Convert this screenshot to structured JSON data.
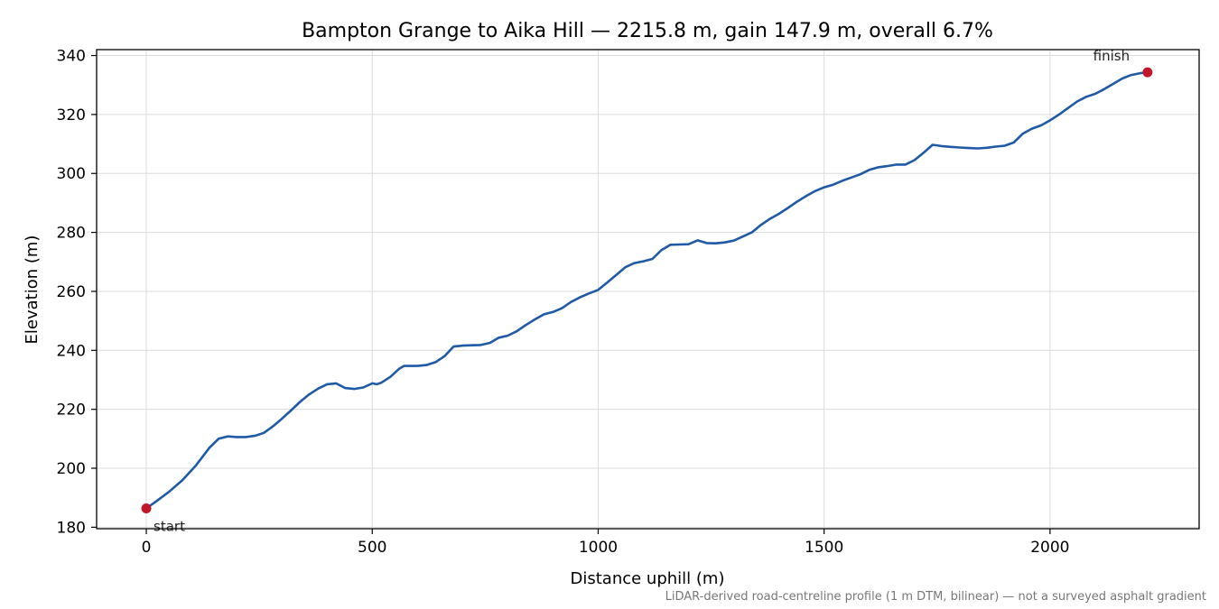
{
  "colors": {
    "line": "#1f5aa6",
    "marker": "#c0182a",
    "grid": "#dcdcdc",
    "note": "#777777"
  },
  "chart_data": {
    "type": "line",
    "title": "Bampton Grange to Aika Hill — 2215.8 m, gain 147.9 m, overall 6.7%",
    "xlabel": "Distance uphill (m)",
    "ylabel": "Elevation (m)",
    "xlim": [
      -110,
      2330
    ],
    "ylim": [
      179.5,
      342
    ],
    "grid": true,
    "xticks": [
      0,
      500,
      1000,
      1500,
      2000
    ],
    "yticks": [
      180,
      200,
      220,
      240,
      260,
      280,
      300,
      320,
      340
    ],
    "xtick_labels": [
      "0",
      "500",
      "1000",
      "1500",
      "2000"
    ],
    "ytick_labels": [
      "180",
      "200",
      "220",
      "240",
      "260",
      "280",
      "300",
      "320",
      "340"
    ],
    "series": [
      {
        "x": [
          0,
          20,
          50,
          80,
          110,
          140,
          160,
          180,
          200,
          220,
          240,
          260,
          280,
          300,
          320,
          340,
          360,
          380,
          400,
          420,
          440,
          460,
          480,
          500,
          510,
          520,
          540,
          560,
          570,
          580,
          600,
          620,
          640,
          660,
          680,
          700,
          720,
          740,
          760,
          780,
          800,
          820,
          840,
          860,
          880,
          900,
          920,
          940,
          960,
          980,
          1000,
          1020,
          1040,
          1060,
          1080,
          1100,
          1120,
          1140,
          1160,
          1180,
          1200,
          1220,
          1240,
          1260,
          1280,
          1300,
          1320,
          1340,
          1360,
          1380,
          1400,
          1420,
          1440,
          1460,
          1480,
          1500,
          1520,
          1540,
          1560,
          1580,
          1600,
          1620,
          1640,
          1660,
          1680,
          1700,
          1720,
          1740,
          1760,
          1780,
          1800,
          1820,
          1840,
          1860,
          1880,
          1900,
          1920,
          1940,
          1960,
          1980,
          2000,
          2020,
          2040,
          2060,
          2080,
          2100,
          2120,
          2140,
          2160,
          2180,
          2200,
          2215.8
        ],
        "y": [
          186.4,
          188.6,
          192.0,
          196.0,
          201.0,
          207.0,
          210.0,
          210.8,
          210.6,
          210.6,
          211.0,
          212.0,
          214.2,
          216.8,
          219.6,
          222.5,
          225.0,
          227.0,
          228.5,
          228.8,
          227.2,
          226.9,
          227.4,
          228.8,
          228.5,
          229.0,
          231.0,
          233.8,
          234.7,
          234.7,
          234.7,
          235.0,
          236.0,
          238.0,
          241.3,
          241.6,
          241.7,
          241.8,
          242.5,
          244.3,
          245.0,
          246.5,
          248.6,
          250.5,
          252.2,
          253.0,
          254.3,
          256.4,
          258.0,
          259.3,
          260.5,
          263.0,
          265.6,
          268.2,
          269.6,
          270.2,
          271.0,
          274.0,
          275.8,
          275.9,
          276.0,
          277.3,
          276.4,
          276.3,
          276.6,
          277.2,
          278.6,
          280.0,
          282.5,
          284.6,
          286.3,
          288.3,
          290.4,
          292.3,
          294.0,
          295.3,
          296.2,
          297.5,
          298.6,
          299.7,
          301.2,
          302.1,
          302.5,
          303.0,
          303.0,
          304.5,
          307.0,
          309.7,
          309.3,
          309.0,
          308.8,
          308.6,
          308.5,
          308.7,
          309.1,
          309.4,
          310.5,
          313.5,
          315.2,
          316.3,
          318.0,
          320.0,
          322.2,
          324.4,
          326.0,
          327.0,
          328.6,
          330.4,
          332.2,
          333.4,
          334.0,
          334.3
        ]
      }
    ],
    "annotations": [
      {
        "text": "start",
        "x": 0,
        "y": 186.4
      },
      {
        "text": "finish",
        "x": 2215.8,
        "y": 334.3
      }
    ],
    "footnote": "LiDAR-derived road-centreline profile (1 m DTM, bilinear) — not a surveyed asphalt gradient"
  }
}
